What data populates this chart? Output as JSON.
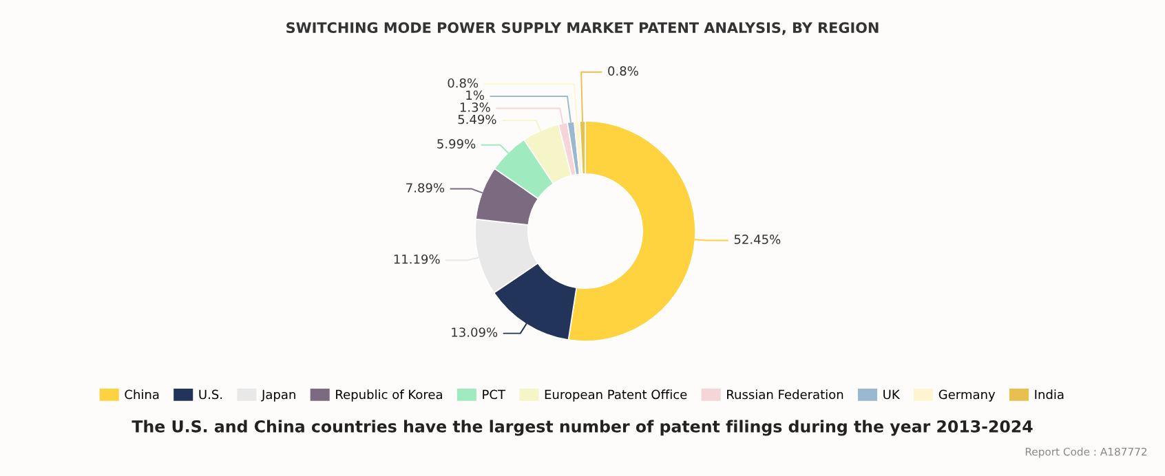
{
  "chart_data": {
    "type": "donut",
    "title": "SWITCHING MODE POWER SUPPLY MARKET PATENT ANALYSIS, BY REGION",
    "categories": [
      "China",
      "U.S.",
      "Japan",
      "Republic of Korea",
      "PCT",
      "European Patent Office",
      "Russian Federation",
      "UK",
      "Germany",
      "India"
    ],
    "values": [
      52.45,
      13.09,
      11.19,
      7.89,
      5.99,
      5.49,
      1.3,
      1,
      0.8,
      0.8
    ],
    "colors": [
      "#ffd23f",
      "#22345a",
      "#e8e8e8",
      "#7b6a80",
      "#a0eac0",
      "#f5f5c8",
      "#f5d5d8",
      "#9ab8d0",
      "#fff5d0",
      "#e8c050"
    ],
    "value_labels": [
      "52.45%",
      "13.09%",
      "11.19%",
      "7.89%",
      "5.99%",
      "5.49%",
      "1.3%",
      "1%",
      "0.8%",
      "0.8%"
    ],
    "legend": "bottom",
    "annotations": [
      "The U.S. and China countries have the largest number of patent filings during the year 2013-2024",
      "Report Code : A187772"
    ]
  }
}
